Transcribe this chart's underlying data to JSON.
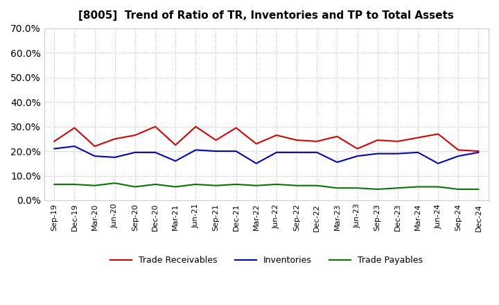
{
  "title": "[8005]  Trend of Ratio of TR, Inventories and TP to Total Assets",
  "x_labels": [
    "Sep-19",
    "Dec-19",
    "Mar-20",
    "Jun-20",
    "Sep-20",
    "Dec-20",
    "Mar-21",
    "Jun-21",
    "Sep-21",
    "Dec-21",
    "Mar-22",
    "Jun-22",
    "Sep-22",
    "Dec-22",
    "Mar-23",
    "Jun-23",
    "Sep-23",
    "Dec-23",
    "Mar-24",
    "Jun-24",
    "Sep-24",
    "Dec-24"
  ],
  "trade_receivables": [
    24.0,
    29.5,
    22.0,
    25.0,
    26.5,
    30.0,
    22.5,
    30.0,
    24.5,
    29.5,
    23.0,
    26.5,
    24.5,
    24.0,
    26.0,
    21.0,
    24.5,
    24.0,
    25.5,
    27.0,
    20.5,
    20.0
  ],
  "inventories": [
    21.0,
    22.0,
    18.0,
    17.5,
    19.5,
    19.5,
    16.0,
    20.5,
    20.0,
    20.0,
    15.0,
    19.5,
    19.5,
    19.5,
    15.5,
    18.0,
    19.0,
    19.0,
    19.5,
    15.0,
    18.0,
    19.5
  ],
  "trade_payables": [
    6.5,
    6.5,
    6.0,
    7.0,
    5.5,
    6.5,
    5.5,
    6.5,
    6.0,
    6.5,
    6.0,
    6.5,
    6.0,
    6.0,
    5.0,
    5.0,
    4.5,
    5.0,
    5.5,
    5.5,
    4.5,
    4.5
  ],
  "ylim": [
    0.0,
    70.0
  ],
  "yticks": [
    0.0,
    10.0,
    20.0,
    30.0,
    40.0,
    50.0,
    60.0,
    70.0
  ],
  "line_colors": {
    "trade_receivables": "#dd0000",
    "inventories": "#0000cc",
    "trade_payables": "#007700"
  },
  "legend_labels": [
    "Trade Receivables",
    "Inventories",
    "Trade Payables"
  ],
  "background_color": "#ffffff",
  "grid_color": "#aaaaaa"
}
